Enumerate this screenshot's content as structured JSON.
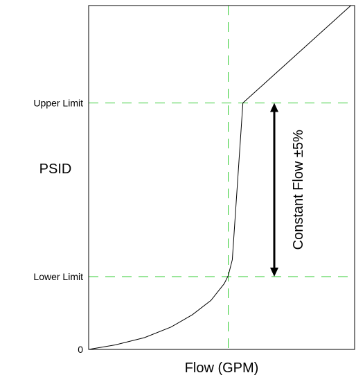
{
  "chart_data": {
    "type": "line",
    "title": "",
    "xlabel": "Flow (GPM)",
    "ylabel": "PSID",
    "xlim": [
      0,
      100
    ],
    "ylim": [
      0,
      100
    ],
    "y_ticks": [
      {
        "label": "0",
        "value": 0
      },
      {
        "label": "Lower Limit",
        "value": 26
      },
      {
        "label": "Upper Limit",
        "value": 88
      }
    ],
    "series": [
      {
        "x": [
          0,
          10,
          21,
          31,
          39,
          46,
          51,
          52.5,
          54,
          58,
          100
        ],
        "y": [
          0,
          1.6,
          4.2,
          8,
          12.4,
          17.5,
          23.5,
          26.4,
          32,
          88,
          124
        ]
      }
    ],
    "reference_lines": {
      "horizontal": [
        26,
        88
      ],
      "vertical": [
        52.5
      ]
    },
    "annotation": {
      "text": "Constant Flow ±5%",
      "y_from": 26,
      "y_to": 88
    },
    "grid": false,
    "legend": "none",
    "colors": {
      "curve": "#000000",
      "reference": "#33cc33",
      "axes": "#000000"
    }
  }
}
